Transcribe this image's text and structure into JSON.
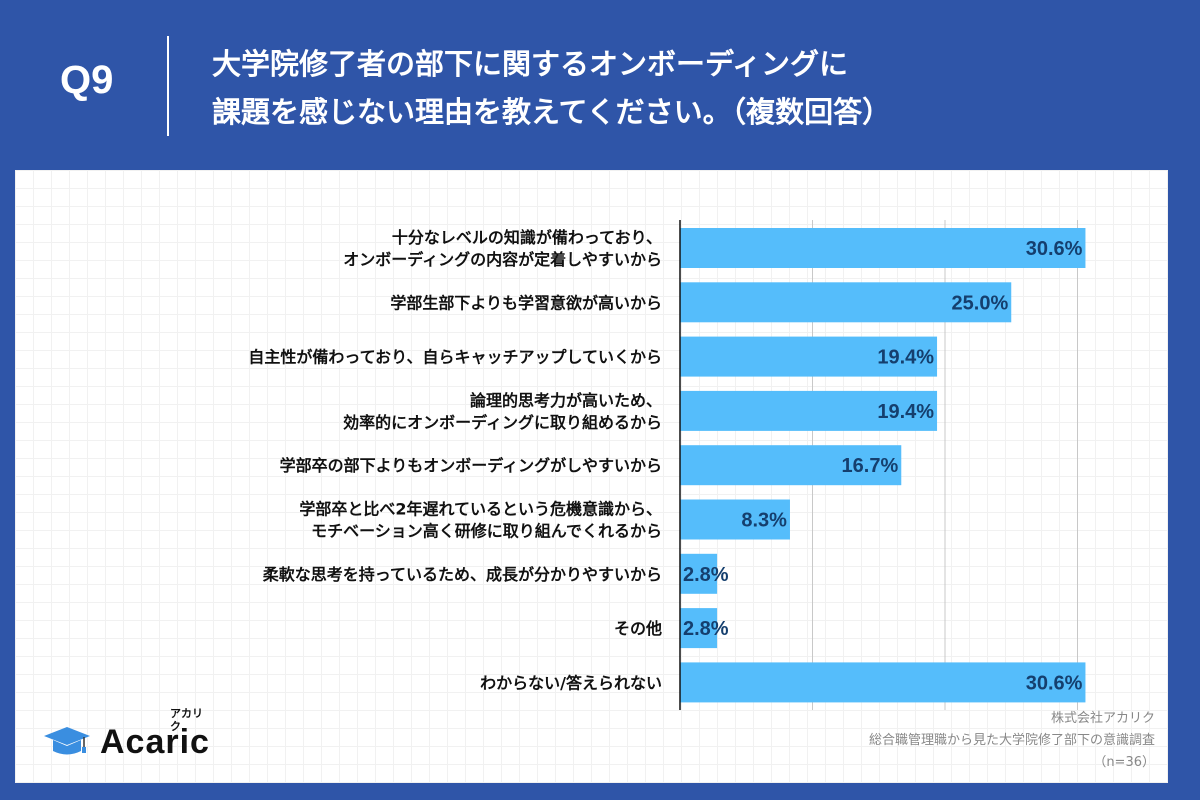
{
  "header": {
    "question": "Q9",
    "title_line1": "大学院修了者の部下に関するオンボーディングに",
    "title_line2": "課題を感じない理由を教えてください。（複数回答）"
  },
  "colors": {
    "background": "#2f55a8",
    "bar": "#55bdfb",
    "value_label": "#153f6e"
  },
  "chart_data": {
    "type": "bar",
    "orientation": "horizontal",
    "categories": [
      [
        "十分なレベルの知識が備わっており、",
        "オンボーディングの内容が定着しやすいから"
      ],
      [
        "学部生部下よりも学習意欲が高いから"
      ],
      [
        "自主性が備わっており、自らキャッチアップしていくから"
      ],
      [
        "論理的思考力が高いため、",
        "効率的にオンボーディングに取り組めるから"
      ],
      [
        "学部卒の部下よりもオンボーディングがしやすいから"
      ],
      [
        "学部卒と比べ2年遅れているという危機意識から、",
        "モチベーション高く研修に取り組んでくれるから"
      ],
      [
        "柔軟な思考を持っているため、成長が分かりやすいから"
      ],
      [
        "その他"
      ],
      [
        "わからない/答えられない"
      ]
    ],
    "values": [
      30.6,
      25.0,
      19.4,
      19.4,
      16.7,
      8.3,
      2.8,
      2.8,
      30.6
    ],
    "data_labels": [
      "30.6%",
      "25.0%",
      "19.4%",
      "19.4%",
      "16.7%",
      "8.3%",
      "2.8%",
      "2.8%",
      "30.6%"
    ],
    "xlim": [
      0,
      35
    ],
    "gridlines": [
      10,
      20,
      30
    ],
    "grid": true,
    "unit": "%"
  },
  "logo": {
    "name": "Acaric",
    "kana": "アカリク"
  },
  "source": {
    "company": "株式会社アカリク",
    "survey": "総合職管理職から見た大学院修了部下の意識調査",
    "sample": "（n=36）"
  }
}
